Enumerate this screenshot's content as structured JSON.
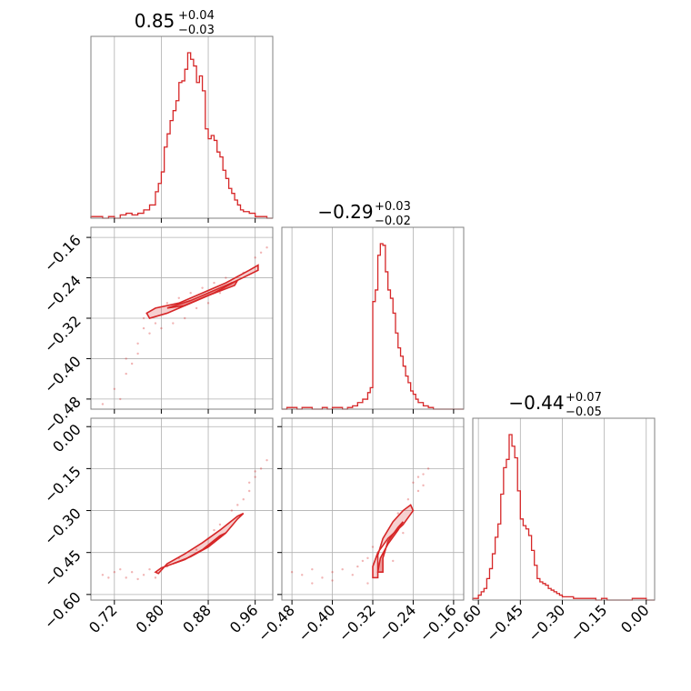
{
  "chart_data": {
    "type": "corner",
    "color": "#d62728",
    "parameters": [
      {
        "title": {
          "median": "0.85",
          "upper": "+0.04",
          "lower": "−0.03"
        },
        "range": [
          0.68,
          0.99
        ],
        "ticks": [
          0.72,
          0.8,
          0.88,
          0.96
        ],
        "tick_labels": [
          "0.72",
          "0.80",
          "0.88",
          "0.96"
        ],
        "histogram": {
          "edges": [
            0.68,
            0.69,
            0.7,
            0.71,
            0.72,
            0.73,
            0.74,
            0.75,
            0.76,
            0.77,
            0.78,
            0.79,
            0.795,
            0.8,
            0.805,
            0.81,
            0.815,
            0.82,
            0.825,
            0.83,
            0.835,
            0.84,
            0.845,
            0.85,
            0.855,
            0.86,
            0.865,
            0.87,
            0.875,
            0.88,
            0.885,
            0.89,
            0.895,
            0.9,
            0.905,
            0.91,
            0.915,
            0.92,
            0.925,
            0.93,
            0.935,
            0.94,
            0.95,
            0.96,
            0.97,
            0.98,
            0.99
          ],
          "counts": [
            0.01,
            0.01,
            0.0,
            0.01,
            0.0,
            0.02,
            0.03,
            0.02,
            0.03,
            0.05,
            0.08,
            0.16,
            0.21,
            0.28,
            0.43,
            0.51,
            0.59,
            0.65,
            0.71,
            0.82,
            0.83,
            0.9,
            1.0,
            0.96,
            0.92,
            0.82,
            0.86,
            0.77,
            0.54,
            0.48,
            0.5,
            0.47,
            0.4,
            0.37,
            0.29,
            0.24,
            0.18,
            0.15,
            0.11,
            0.08,
            0.05,
            0.04,
            0.03,
            0.01,
            0.01,
            0.0
          ]
        }
      },
      {
        "title": {
          "median": "−0.29",
          "upper": "+0.03",
          "lower": "−0.02"
        },
        "range": [
          -0.5,
          -0.14
        ],
        "ticks": [
          -0.48,
          -0.4,
          -0.32,
          -0.24,
          -0.16
        ],
        "tick_labels": [
          "−0.48",
          "−0.40",
          "−0.32",
          "−0.24",
          "−0.16"
        ],
        "histogram": {
          "edges": [
            -0.5,
            -0.49,
            -0.48,
            -0.47,
            -0.46,
            -0.45,
            -0.44,
            -0.43,
            -0.42,
            -0.41,
            -0.4,
            -0.39,
            -0.38,
            -0.37,
            -0.36,
            -0.35,
            -0.34,
            -0.33,
            -0.325,
            -0.32,
            -0.315,
            -0.31,
            -0.305,
            -0.3,
            -0.295,
            -0.29,
            -0.285,
            -0.28,
            -0.275,
            -0.27,
            -0.265,
            -0.26,
            -0.255,
            -0.25,
            -0.245,
            -0.24,
            -0.235,
            -0.23,
            -0.22,
            -0.21,
            -0.2,
            -0.19,
            -0.18,
            -0.17,
            -0.16,
            -0.15,
            -0.14
          ],
          "counts": [
            0.0,
            0.01,
            0.01,
            0.0,
            0.01,
            0.01,
            0.0,
            0.0,
            0.01,
            0.0,
            0.01,
            0.01,
            0.0,
            0.01,
            0.02,
            0.04,
            0.06,
            0.1,
            0.13,
            0.65,
            0.72,
            0.93,
            1.0,
            0.99,
            0.83,
            0.72,
            0.67,
            0.58,
            0.46,
            0.37,
            0.32,
            0.26,
            0.2,
            0.16,
            0.11,
            0.09,
            0.06,
            0.04,
            0.02,
            0.01,
            0.0,
            0.0,
            0.0,
            0.0,
            0.0,
            0.0
          ]
        }
      },
      {
        "title": {
          "median": "−0.44",
          "upper": "+0.07",
          "lower": "−0.05"
        },
        "range": [
          -0.62,
          0.03
        ],
        "ticks": [
          -0.6,
          -0.45,
          -0.3,
          -0.15,
          0.0
        ],
        "tick_labels": [
          "−0.60",
          "−0.45",
          "−0.30",
          "−0.15",
          "0.00"
        ],
        "histogram": {
          "edges": [
            -0.62,
            -0.61,
            -0.6,
            -0.59,
            -0.58,
            -0.57,
            -0.56,
            -0.55,
            -0.54,
            -0.53,
            -0.52,
            -0.51,
            -0.5,
            -0.49,
            -0.48,
            -0.47,
            -0.46,
            -0.45,
            -0.44,
            -0.43,
            -0.42,
            -0.41,
            -0.4,
            -0.39,
            -0.38,
            -0.37,
            -0.36,
            -0.35,
            -0.34,
            -0.33,
            -0.32,
            -0.31,
            -0.3,
            -0.28,
            -0.26,
            -0.24,
            -0.22,
            -0.2,
            -0.18,
            -0.16,
            -0.14,
            -0.1,
            -0.05,
            0.0,
            0.03
          ],
          "counts": [
            0.01,
            0.01,
            0.03,
            0.05,
            0.07,
            0.13,
            0.19,
            0.28,
            0.38,
            0.46,
            0.64,
            0.8,
            0.85,
            1.0,
            0.93,
            0.86,
            0.66,
            0.49,
            0.45,
            0.43,
            0.39,
            0.3,
            0.21,
            0.13,
            0.11,
            0.1,
            0.09,
            0.07,
            0.06,
            0.05,
            0.04,
            0.03,
            0.02,
            0.02,
            0.01,
            0.01,
            0.01,
            0.01,
            0.0,
            0.01,
            0.0,
            0.0,
            0.01,
            0.0
          ]
        }
      }
    ],
    "pairs": [
      {
        "row": 1,
        "col": 0,
        "contour_outer": [
          [
            0.775,
            -0.31
          ],
          [
            0.79,
            -0.3
          ],
          [
            0.83,
            -0.29
          ],
          [
            0.87,
            -0.27
          ],
          [
            0.91,
            -0.25
          ],
          [
            0.95,
            -0.225
          ],
          [
            0.965,
            -0.215
          ],
          [
            0.965,
            -0.225
          ],
          [
            0.93,
            -0.245
          ],
          [
            0.89,
            -0.27
          ],
          [
            0.85,
            -0.29
          ],
          [
            0.81,
            -0.31
          ],
          [
            0.78,
            -0.32
          ]
        ],
        "contour_inner": [
          [
            0.81,
            -0.3
          ],
          [
            0.85,
            -0.285
          ],
          [
            0.89,
            -0.265
          ],
          [
            0.93,
            -0.245
          ],
          [
            0.925,
            -0.255
          ],
          [
            0.88,
            -0.275
          ],
          [
            0.84,
            -0.295
          ]
        ],
        "scatter": [
          [
            0.7,
            -0.49
          ],
          [
            0.72,
            -0.46
          ],
          [
            0.74,
            -0.43
          ],
          [
            0.75,
            -0.41
          ],
          [
            0.73,
            -0.48
          ],
          [
            0.76,
            -0.37
          ],
          [
            0.77,
            -0.34
          ],
          [
            0.79,
            -0.33
          ],
          [
            0.8,
            -0.34
          ],
          [
            0.82,
            -0.33
          ],
          [
            0.84,
            -0.32
          ],
          [
            0.86,
            -0.3
          ],
          [
            0.88,
            -0.29
          ],
          [
            0.9,
            -0.27
          ],
          [
            0.92,
            -0.25
          ],
          [
            0.94,
            -0.23
          ],
          [
            0.96,
            -0.2
          ],
          [
            0.97,
            -0.19
          ],
          [
            0.98,
            -0.18
          ],
          [
            0.77,
            -0.32
          ],
          [
            0.81,
            -0.29
          ],
          [
            0.85,
            -0.27
          ],
          [
            0.87,
            -0.26
          ],
          [
            0.89,
            -0.25
          ],
          [
            0.91,
            -0.24
          ],
          [
            0.83,
            -0.28
          ],
          [
            0.78,
            -0.35
          ],
          [
            0.76,
            -0.39
          ],
          [
            0.74,
            -0.4
          ]
        ]
      },
      {
        "row": 2,
        "col": 0,
        "contour_outer": [
          [
            0.79,
            -0.52
          ],
          [
            0.8,
            -0.505
          ],
          [
            0.84,
            -0.475
          ],
          [
            0.88,
            -0.43
          ],
          [
            0.91,
            -0.38
          ],
          [
            0.93,
            -0.33
          ],
          [
            0.94,
            -0.31
          ],
          [
            0.93,
            -0.32
          ],
          [
            0.9,
            -0.37
          ],
          [
            0.87,
            -0.415
          ],
          [
            0.84,
            -0.455
          ],
          [
            0.81,
            -0.49
          ],
          [
            0.795,
            -0.525
          ]
        ],
        "contour_inner": [
          [
            0.82,
            -0.49
          ],
          [
            0.85,
            -0.465
          ],
          [
            0.88,
            -0.43
          ],
          [
            0.91,
            -0.38
          ],
          [
            0.9,
            -0.39
          ],
          [
            0.87,
            -0.44
          ],
          [
            0.84,
            -0.475
          ]
        ],
        "scatter": [
          [
            0.7,
            -0.53
          ],
          [
            0.72,
            -0.52
          ],
          [
            0.74,
            -0.54
          ],
          [
            0.76,
            -0.545
          ],
          [
            0.73,
            -0.51
          ],
          [
            0.77,
            -0.53
          ],
          [
            0.78,
            -0.51
          ],
          [
            0.95,
            -0.2
          ],
          [
            0.96,
            -0.18
          ],
          [
            0.97,
            -0.15
          ],
          [
            0.98,
            -0.12
          ],
          [
            0.94,
            -0.26
          ],
          [
            0.95,
            -0.23
          ],
          [
            0.92,
            -0.3
          ],
          [
            0.9,
            -0.35
          ],
          [
            0.88,
            -0.4
          ],
          [
            0.86,
            -0.44
          ],
          [
            0.83,
            -0.47
          ],
          [
            0.81,
            -0.5
          ],
          [
            0.79,
            -0.54
          ],
          [
            0.75,
            -0.52
          ],
          [
            0.71,
            -0.54
          ],
          [
            0.96,
            -0.16
          ],
          [
            0.93,
            -0.28
          ],
          [
            0.89,
            -0.37
          ]
        ]
      },
      {
        "row": 2,
        "col": 1,
        "contour_outer": [
          [
            -0.32,
            -0.54
          ],
          [
            -0.32,
            -0.5
          ],
          [
            -0.31,
            -0.45
          ],
          [
            -0.29,
            -0.4
          ],
          [
            -0.26,
            -0.35
          ],
          [
            -0.24,
            -0.3
          ],
          [
            -0.245,
            -0.28
          ],
          [
            -0.26,
            -0.3
          ],
          [
            -0.28,
            -0.34
          ],
          [
            -0.3,
            -0.4
          ],
          [
            -0.31,
            -0.46
          ],
          [
            -0.31,
            -0.54
          ]
        ],
        "contour_inner": [
          [
            -0.31,
            -0.52
          ],
          [
            -0.305,
            -0.47
          ],
          [
            -0.29,
            -0.42
          ],
          [
            -0.27,
            -0.37
          ],
          [
            -0.26,
            -0.34
          ],
          [
            -0.27,
            -0.36
          ],
          [
            -0.29,
            -0.41
          ],
          [
            -0.3,
            -0.47
          ],
          [
            -0.3,
            -0.52
          ]
        ],
        "scatter": [
          [
            -0.48,
            -0.52
          ],
          [
            -0.46,
            -0.53
          ],
          [
            -0.44,
            -0.51
          ],
          [
            -0.42,
            -0.54
          ],
          [
            -0.4,
            -0.52
          ],
          [
            -0.38,
            -0.51
          ],
          [
            -0.36,
            -0.53
          ],
          [
            -0.35,
            -0.5
          ],
          [
            -0.34,
            -0.48
          ],
          [
            -0.24,
            -0.2
          ],
          [
            -0.23,
            -0.18
          ],
          [
            -0.22,
            -0.17
          ],
          [
            -0.21,
            -0.15
          ],
          [
            -0.23,
            -0.23
          ],
          [
            -0.25,
            -0.26
          ],
          [
            -0.22,
            -0.21
          ],
          [
            -0.27,
            -0.31
          ],
          [
            -0.33,
            -0.56
          ],
          [
            -0.33,
            -0.47
          ],
          [
            -0.32,
            -0.43
          ],
          [
            -0.28,
            -0.48
          ],
          [
            -0.26,
            -0.38
          ],
          [
            -0.44,
            -0.56
          ],
          [
            -0.4,
            -0.55
          ]
        ]
      }
    ]
  }
}
